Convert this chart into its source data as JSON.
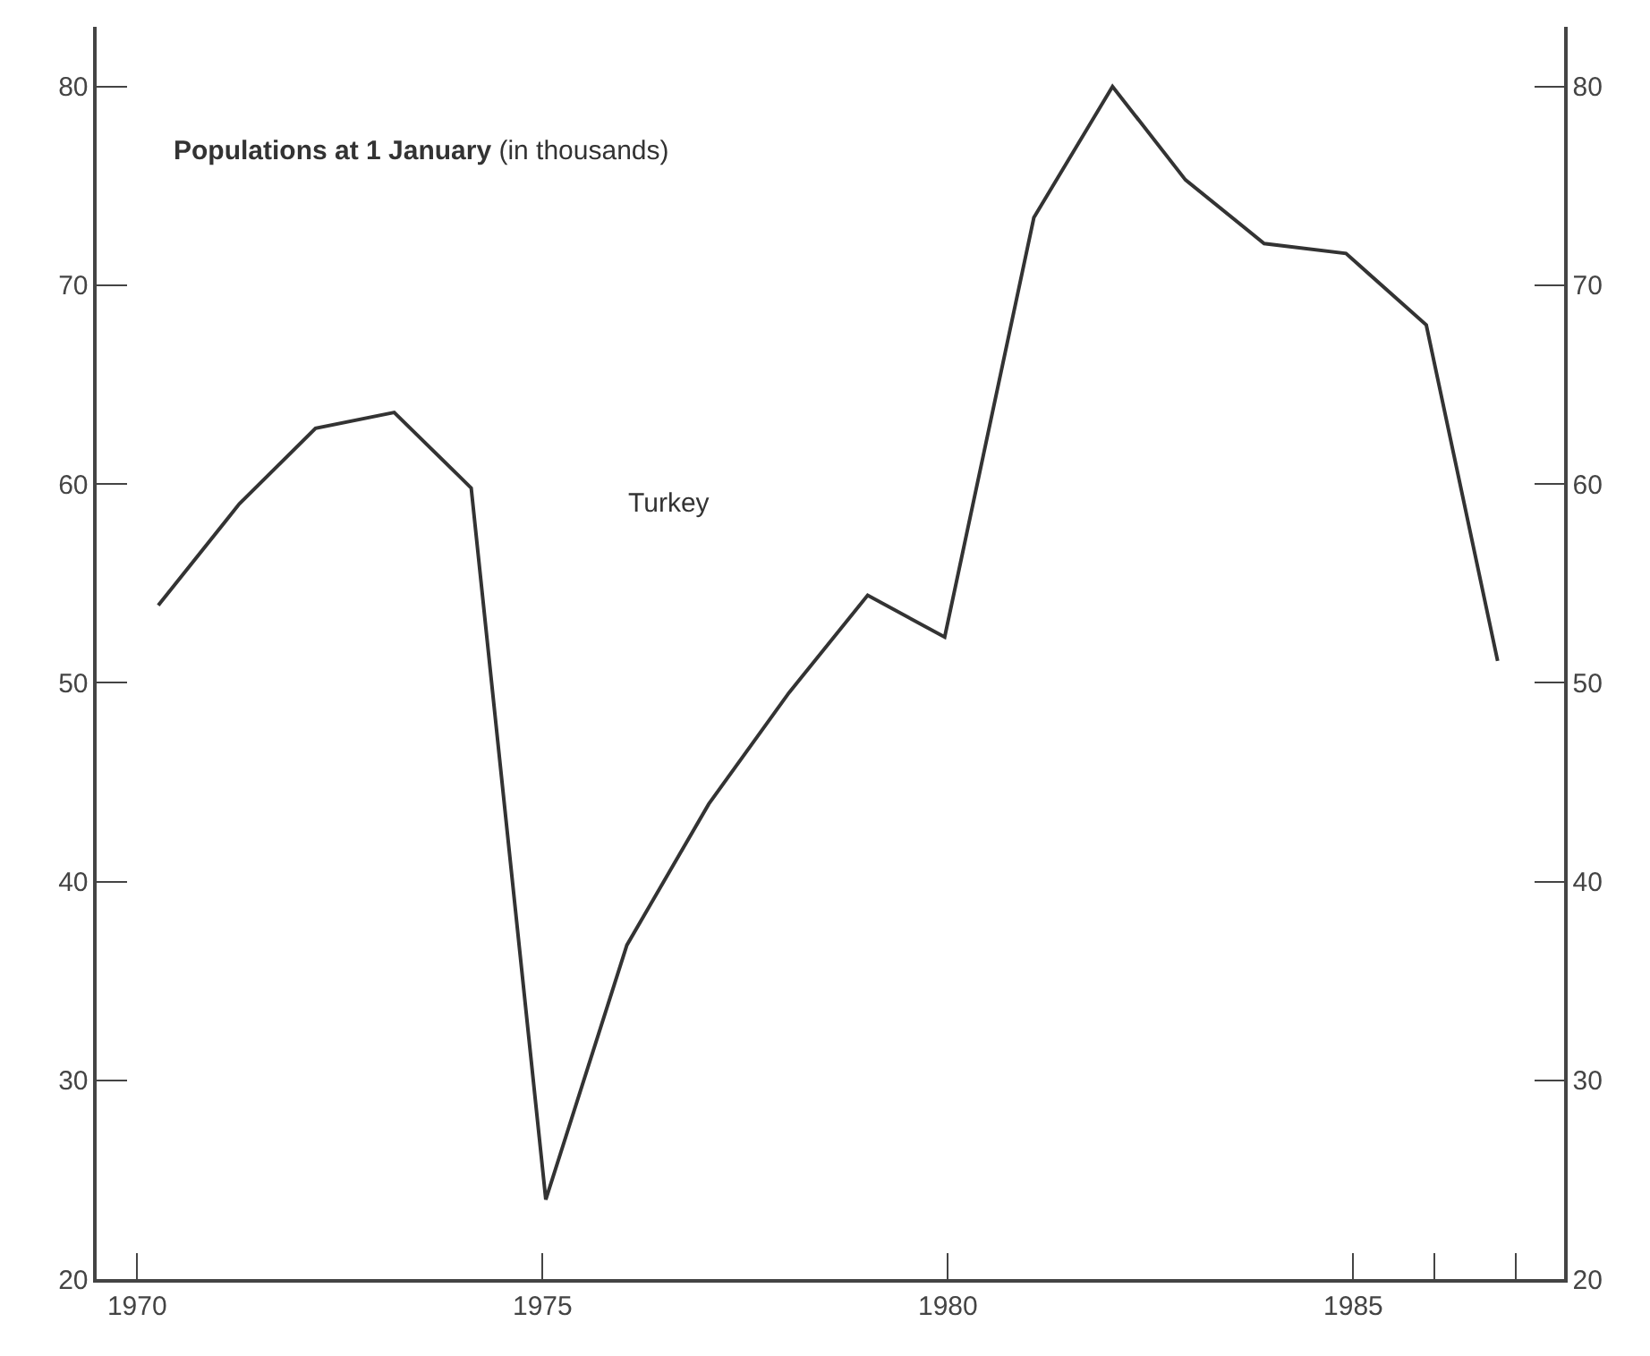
{
  "chart_data": {
    "type": "line",
    "title": "Populations at 1 January",
    "subtitle": "(in thousands)",
    "x": [
      1970.26,
      1971.26,
      1972.2,
      1973.17,
      1974.12,
      1975.04,
      1976.04,
      1977.05,
      1978.04,
      1979.01,
      1979.96,
      1981.06,
      1982.03,
      1982.93,
      1983.9,
      1984.91,
      1985.9,
      1986.78
    ],
    "series": [
      {
        "name": "Turkey",
        "color": "#333333",
        "values": [
          53.9,
          59.0,
          62.8,
          63.6,
          59.8,
          24.0,
          36.8,
          43.9,
          49.5,
          54.4,
          52.3,
          73.4,
          80.0,
          75.3,
          72.1,
          71.6,
          68.0,
          51.1
        ]
      }
    ],
    "xlim": [
      1969.5,
      1987.6
    ],
    "xticks": [
      1970,
      1975,
      1980,
      1985,
      {
        "value": 1986,
        "label": null
      },
      {
        "value": 1987,
        "label": null
      }
    ],
    "ylim": [
      20,
      83
    ],
    "yticks": [
      20,
      30,
      40,
      50,
      60,
      70,
      80
    ],
    "y2lim": [
      20,
      83
    ],
    "y2ticks": [
      20,
      30,
      40,
      50,
      60,
      70,
      80
    ],
    "legend": false,
    "marker": "none",
    "line_style": "solid"
  }
}
